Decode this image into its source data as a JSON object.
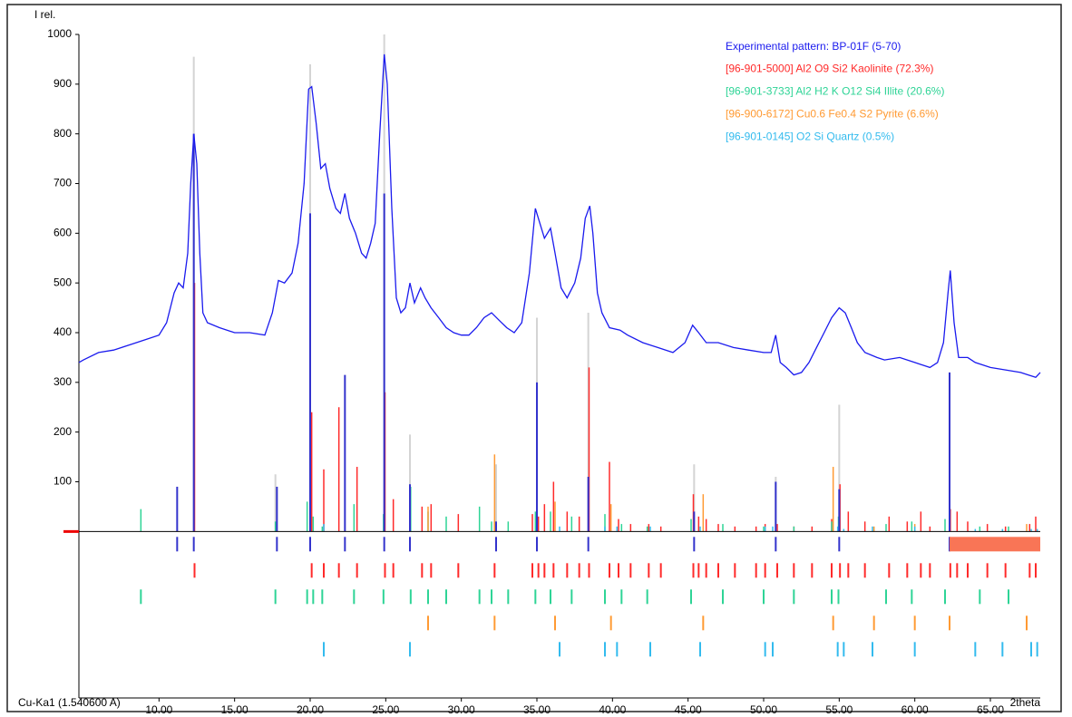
{
  "chart_data": {
    "type": "line",
    "y_label": "I rel.",
    "x_label": "2theta",
    "radiation": "Cu-Ka1 (1.540600 A)",
    "xlim": [
      4.7,
      68.3
    ],
    "xticks": [
      {
        "value": 10,
        "label": "10.00"
      },
      {
        "value": 15,
        "label": "15.00"
      },
      {
        "value": 20,
        "label": "20.00"
      },
      {
        "value": 25,
        "label": "25.00"
      },
      {
        "value": 30,
        "label": "30.00"
      },
      {
        "value": 35,
        "label": "35.00"
      },
      {
        "value": 40,
        "label": "40.00"
      },
      {
        "value": 45,
        "label": "45.00"
      },
      {
        "value": 50,
        "label": "50.00"
      },
      {
        "value": 55,
        "label": "55.00"
      },
      {
        "value": 60,
        "label": "60.00"
      },
      {
        "value": 65,
        "label": "65.00"
      }
    ],
    "ylim": [
      -335,
      1000
    ],
    "yticks": [
      100,
      200,
      300,
      400,
      500,
      600,
      700,
      800,
      900,
      1000
    ],
    "series": [
      {
        "name": "Experimental pattern: BP-01F (5-70)",
        "color": "#1a1aee",
        "x": [
          4.7,
          5,
          6,
          7,
          8,
          9,
          10,
          10.5,
          11,
          11.3,
          11.6,
          11.9,
          12.1,
          12.3,
          12.5,
          12.7,
          12.9,
          13.2,
          14,
          15,
          16,
          17,
          17.5,
          17.9,
          18.3,
          18.8,
          19.2,
          19.6,
          19.9,
          20.1,
          20.4,
          20.7,
          21,
          21.3,
          21.7,
          22,
          22.3,
          22.6,
          23,
          23.4,
          23.7,
          24,
          24.3,
          24.6,
          24.9,
          25.1,
          25.4,
          25.7,
          26,
          26.3,
          26.6,
          26.9,
          27.3,
          27.6,
          28,
          28.5,
          29,
          29.5,
          30,
          30.5,
          31,
          31.5,
          32,
          32.5,
          33,
          33.5,
          34,
          34.5,
          34.9,
          35.2,
          35.5,
          35.9,
          36.2,
          36.6,
          37,
          37.5,
          37.9,
          38.2,
          38.5,
          38.7,
          39,
          39.3,
          39.8,
          40.5,
          41,
          42,
          43,
          44,
          44.8,
          45.3,
          45.7,
          46.2,
          47,
          48,
          49,
          50,
          50.5,
          50.8,
          51.1,
          51.5,
          52,
          52.5,
          53,
          53.5,
          54,
          54.5,
          55,
          55.4,
          55.8,
          56.2,
          56.7,
          57.5,
          58,
          59,
          60,
          61,
          61.5,
          61.9,
          62.2,
          62.35,
          62.6,
          62.9,
          63.5,
          64,
          65,
          66,
          67,
          67.5,
          68,
          68.3
        ],
        "values": [
          340,
          345,
          360,
          365,
          375,
          385,
          395,
          420,
          480,
          500,
          490,
          560,
          700,
          800,
          740,
          560,
          440,
          420,
          410,
          400,
          400,
          395,
          440,
          505,
          500,
          520,
          580,
          700,
          890,
          895,
          820,
          730,
          740,
          690,
          650,
          640,
          680,
          630,
          600,
          560,
          550,
          580,
          620,
          800,
          960,
          900,
          650,
          470,
          440,
          450,
          500,
          460,
          490,
          470,
          450,
          430,
          410,
          400,
          395,
          395,
          410,
          430,
          440,
          425,
          410,
          400,
          420,
          520,
          650,
          620,
          590,
          610,
          560,
          490,
          470,
          500,
          550,
          630,
          655,
          600,
          480,
          440,
          410,
          405,
          395,
          380,
          370,
          360,
          380,
          415,
          400,
          380,
          380,
          370,
          365,
          360,
          360,
          395,
          340,
          330,
          315,
          320,
          340,
          370,
          400,
          430,
          450,
          440,
          410,
          380,
          360,
          350,
          345,
          350,
          340,
          330,
          340,
          380,
          480,
          525,
          420,
          350,
          350,
          340,
          330,
          325,
          320,
          315,
          310,
          320
        ]
      }
    ],
    "reference_sum": {
      "color": "#d4d4d4",
      "x": [
        12.3,
        17.7,
        20.0,
        24.9,
        26.6,
        32.3,
        35.0,
        38.4,
        45.4,
        50.8,
        55.0
      ],
      "values": [
        955,
        115,
        940,
        1000,
        195,
        135,
        430,
        440,
        135,
        110,
        255
      ]
    },
    "peak_list": {
      "color": "#3333cc",
      "x": [
        11.2,
        12.3,
        17.8,
        20.0,
        22.3,
        24.9,
        26.6,
        32.3,
        35.0,
        38.4,
        45.4,
        50.8,
        55.0,
        62.3
      ],
      "values": [
        90,
        800,
        90,
        640,
        315,
        680,
        95,
        20,
        300,
        110,
        40,
        100,
        85,
        320
      ]
    },
    "phases": [
      {
        "name": "[96-901-5000] Al2 O9 Si2  Kaolinite (72.3%)",
        "color": "#ff2a2a",
        "x": [
          12.35,
          20.1,
          20.9,
          21.9,
          23.1,
          24.95,
          25.5,
          27.4,
          28.0,
          29.8,
          32.2,
          34.7,
          35.1,
          35.5,
          36.1,
          37.0,
          37.8,
          38.45,
          39.8,
          40.4,
          41.2,
          42.4,
          43.2,
          45.35,
          45.7,
          46.2,
          47.0,
          48.1,
          49.5,
          50.1,
          50.9,
          52.0,
          53.2,
          54.5,
          55.05,
          55.6,
          56.7,
          58.3,
          59.5,
          60.4,
          61.0,
          62.35,
          62.8,
          63.5,
          64.8,
          66.0,
          67.6,
          68.0
        ],
        "values": [
          500,
          240,
          125,
          250,
          130,
          280,
          65,
          50,
          55,
          35,
          20,
          35,
          30,
          55,
          100,
          40,
          30,
          330,
          140,
          25,
          15,
          15,
          10,
          75,
          30,
          25,
          15,
          10,
          10,
          15,
          15,
          10,
          10,
          25,
          95,
          40,
          20,
          30,
          20,
          40,
          10,
          45,
          40,
          20,
          15,
          10,
          15,
          30
        ]
      },
      {
        "name": "[96-901-3733] Al2 H2 K O12 Si4  Illite (20.6%)",
        "color": "#2ed496",
        "x": [
          8.8,
          17.7,
          19.8,
          20.2,
          20.8,
          22.9,
          24.85,
          26.65,
          27.8,
          29.0,
          31.2,
          32.0,
          33.1,
          34.9,
          35.9,
          37.3,
          39.5,
          40.6,
          42.3,
          45.2,
          47.3,
          50.0,
          52.0,
          54.5,
          54.95,
          58.1,
          59.8,
          62.0,
          64.3,
          66.2
        ],
        "values": [
          45,
          20,
          60,
          30,
          10,
          55,
          35,
          90,
          40,
          30,
          50,
          20,
          20,
          40,
          40,
          30,
          35,
          15,
          10,
          25,
          15,
          10,
          10,
          20,
          30,
          15,
          20,
          25,
          10,
          10
        ]
      },
      {
        "name": "[96-900-6172] Cu0.6 Fe0.4 S2  Pyrite (6.6%)",
        "color": "#ff9a33",
        "x": [
          27.8,
          32.2,
          36.2,
          39.9,
          46.0,
          54.6,
          57.3,
          60.0,
          62.3,
          67.4
        ],
        "values": [
          50,
          155,
          60,
          55,
          75,
          130,
          10,
          15,
          25,
          15
        ]
      },
      {
        "name": "[96-901-0145] O2 Si  Quartz (0.5%)",
        "color": "#33bbee",
        "x": [
          20.9,
          26.6,
          36.5,
          39.5,
          40.3,
          42.5,
          45.8,
          50.1,
          50.6,
          54.9,
          55.3,
          57.2,
          60.0,
          64.0,
          65.8,
          67.7,
          68.1
        ],
        "values": [
          15,
          65,
          10,
          10,
          10,
          10,
          10,
          10,
          10,
          10,
          5,
          10,
          10,
          5,
          5,
          5,
          5
        ]
      }
    ]
  }
}
